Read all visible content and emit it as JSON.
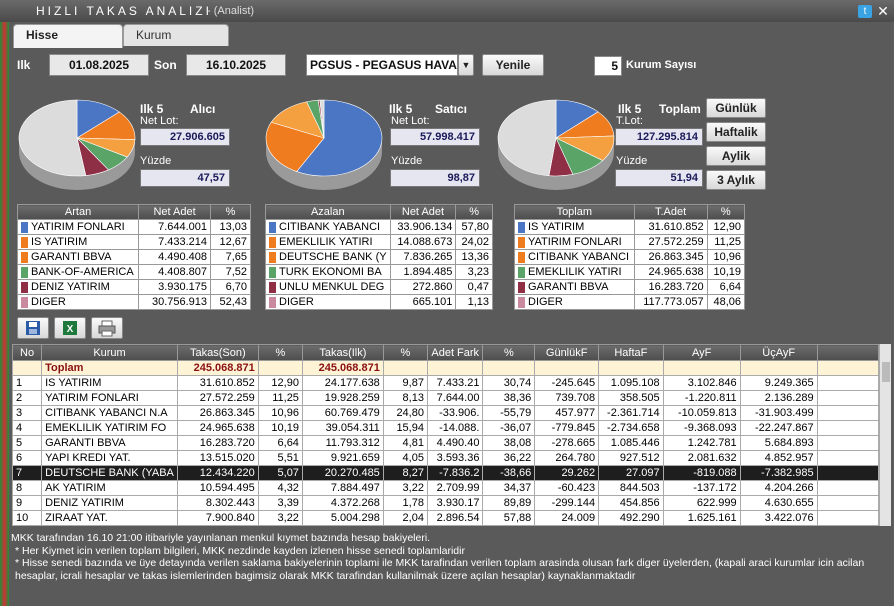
{
  "window": {
    "title": "HIZLI TAKAS ANALIZI",
    "subtitle": "- (Analist)"
  },
  "tabs": [
    {
      "label": "Hisse"
    },
    {
      "label": "Kurum"
    }
  ],
  "controls": {
    "ilk_label": "Ilk",
    "start_date": "01.08.2025",
    "son_label": "Son",
    "end_date": "16.10.2025",
    "stock": "PGSUS - PEGASUS HAVA",
    "yenile": "Yenile",
    "kurum_sayisi_value": "5",
    "kurum_sayisi_label": "Kurum Sayısı"
  },
  "period_buttons": [
    "Günlük",
    "Haftalik",
    "Aylik",
    "3 Aylık"
  ],
  "colors": {
    "blue": "#4a76c4",
    "orange": "#f07c20",
    "green": "#5aa468",
    "maroon": "#8e2f46",
    "pink": "#c98aa0",
    "gray": "#dcdcdc"
  },
  "alici": {
    "ilk": "Ilk 5",
    "title": "Alıcı",
    "net_lot_label": "Net Lot:",
    "net_lot": "27.906.605",
    "yuzde_label": "Yüzde",
    "yuzde": "47,57",
    "headers": [
      "Artan",
      "Net Adet",
      "%"
    ],
    "rows": [
      {
        "name": "YATIRIM FONLARI",
        "v": "7.644.001",
        "p": "13,03",
        "c": "#4a76c4"
      },
      {
        "name": "IS YATIRIM",
        "v": "7.433.214",
        "p": "12,67",
        "c": "#f07c20"
      },
      {
        "name": "GARANTI BBVA",
        "v": "4.490.408",
        "p": "7,65",
        "c": "#f07c20"
      },
      {
        "name": "BANK-OF-AMERICA",
        "v": "4.408.807",
        "p": "7,52",
        "c": "#5aa468"
      },
      {
        "name": "DENIZ YATIRIM",
        "v": "3.930.175",
        "p": "6,70",
        "c": "#8e2f46"
      },
      {
        "name": "DIGER",
        "v": "30.756.913",
        "p": "52,43",
        "c": "#c98aa0"
      }
    ],
    "slices": [
      13.03,
      12.67,
      7.65,
      7.52,
      6.7,
      52.43
    ]
  },
  "satici": {
    "ilk": "Ilk 5",
    "title": "Satıcı",
    "net_lot_label": "Net Lot:",
    "net_lot": "57.998.417",
    "yuzde_label": "Yüzde",
    "yuzde": "98,87",
    "headers": [
      "Azalan",
      "Net Adet",
      "%"
    ],
    "rows": [
      {
        "name": "CITIBANK YABANCI",
        "v": "33.906.134",
        "p": "57,80",
        "c": "#4a76c4"
      },
      {
        "name": "EMEKLILIK YATIRI",
        "v": "14.088.673",
        "p": "24,02",
        "c": "#f07c20"
      },
      {
        "name": "DEUTSCHE BANK (Y",
        "v": "7.836.265",
        "p": "13,36",
        "c": "#f07c20"
      },
      {
        "name": "TURK EKONOMI BA",
        "v": "1.894.485",
        "p": "3,23",
        "c": "#5aa468"
      },
      {
        "name": "UNLU MENKUL DEG",
        "v": "272.860",
        "p": "0,47",
        "c": "#8e2f46"
      },
      {
        "name": "DIGER",
        "v": "665.101",
        "p": "1,13",
        "c": "#c98aa0"
      }
    ],
    "slices": [
      57.8,
      24.02,
      13.36,
      3.23,
      0.47,
      1.13
    ]
  },
  "toplam": {
    "ilk": "Ilk 5",
    "title": "Toplam",
    "lot_label": "T.Lot:",
    "lot": "127.295.814",
    "yuzde_label": "Yüzde",
    "yuzde": "51,94",
    "headers": [
      "Toplam",
      "T.Adet",
      "%"
    ],
    "rows": [
      {
        "name": "IS YATIRIM",
        "v": "31.610.852",
        "p": "12,90",
        "c": "#4a76c4"
      },
      {
        "name": "YATIRIM FONLARI",
        "v": "27.572.259",
        "p": "11,25",
        "c": "#f07c20"
      },
      {
        "name": "CITIBANK YABANCI",
        "v": "26.863.345",
        "p": "10,96",
        "c": "#f07c20"
      },
      {
        "name": "EMEKLILIK YATIRI",
        "v": "24.965.638",
        "p": "10,19",
        "c": "#5aa468"
      },
      {
        "name": "GARANTI BBVA",
        "v": "16.283.720",
        "p": "6,64",
        "c": "#8e2f46"
      },
      {
        "name": "DIGER",
        "v": "117.773.057",
        "p": "48,06",
        "c": "#c98aa0"
      }
    ],
    "slices": [
      12.9,
      11.25,
      10.96,
      10.19,
      6.64,
      48.06
    ]
  },
  "table": {
    "headers": [
      "No",
      "Kurum",
      "Takas(Son)",
      "%",
      "Takas(Ilk)",
      "%",
      "Adet Fark",
      "%",
      "GünlükF",
      "HaftaF",
      "AyF",
      "ÜçAyF"
    ],
    "total": {
      "label": "Toplam",
      "son": "245.068.871",
      "ilk": "245.068.871"
    },
    "rows": [
      [
        "1",
        "IS YATIRIM",
        "31.610.852",
        "12,90",
        "24.177.638",
        "9,87",
        "7.433.21",
        "30,74",
        "-245.645",
        "1.095.108",
        "3.102.846",
        "9.249.365"
      ],
      [
        "2",
        "YATIRIM FONLARI",
        "27.572.259",
        "11,25",
        "19.928.259",
        "8,13",
        "7.644.00",
        "38,36",
        "739.708",
        "358.505",
        "-1.220.811",
        "2.136.289"
      ],
      [
        "3",
        "CITIBANK YABANCI N.A",
        "26.863.345",
        "10,96",
        "60.769.479",
        "24,80",
        "-33.906.",
        "-55,79",
        "457.977",
        "-2.361.714",
        "-10.059.813",
        "-31.903.499"
      ],
      [
        "4",
        "EMEKLILIK YATIRIM FO",
        "24.965.638",
        "10,19",
        "39.054.311",
        "15,94",
        "-14.088.",
        "-36,07",
        "-779.845",
        "-2.734.658",
        "-9.368.093",
        "-22.247.867"
      ],
      [
        "5",
        "GARANTI BBVA",
        "16.283.720",
        "6,64",
        "11.793.312",
        "4,81",
        "4.490.40",
        "38,08",
        "-278.665",
        "1.085.446",
        "1.242.781",
        "5.684.893"
      ],
      [
        "6",
        "YAPI KREDI YAT.",
        "13.515.020",
        "5,51",
        "9.921.659",
        "4,05",
        "3.593.36",
        "36,22",
        "264.780",
        "927.512",
        "2.081.632",
        "4.852.957"
      ],
      [
        "7",
        "DEUTSCHE BANK (YABA",
        "12.434.220",
        "5,07",
        "20.270.485",
        "8,27",
        "-7.836.2",
        "-38,66",
        "29.262",
        "27.097",
        "-819.088",
        "-7.382.985"
      ],
      [
        "8",
        "AK YATIRIM",
        "10.594.495",
        "4,32",
        "7.884.497",
        "3,22",
        "2.709.99",
        "34,37",
        "-60.423",
        "844.503",
        "-137.172",
        "4.204.266"
      ],
      [
        "9",
        "DENIZ YATIRIM",
        "8.302.443",
        "3,39",
        "4.372.268",
        "1,78",
        "3.930.17",
        "89,89",
        "-299.144",
        "454.856",
        "622.999",
        "4.630.655"
      ],
      [
        "10",
        "ZIRAAT YAT.",
        "7.900.840",
        "3,22",
        "5.004.298",
        "2,04",
        "2.896.54",
        "57,88",
        "24.009",
        "492.290",
        "1.625.161",
        "3.422.076"
      ]
    ]
  },
  "footer": [
    "MKK tarafından 16.10 21:00 itibariyle yayınlanan menkul kıymet bazında hesap bakiyeleri.",
    "* Her Kiymet icin verilen toplam bilgileri, MKK nezdinde kayden izlenen hisse senedi toplamlaridir",
    "* Hisse senedi bazında ve üye detayında verilen saklama bakiyelerinin toplami ile MKK tarafindan verilen toplam arasinda olusan fark diger üyelerden, (kapali araci kurumlar icin acilan hesaplar, icrali hesaplar ve takas islemlerinden bagimsiz olarak MKK tarafindan kullanilmak üzere açılan hesaplar) kaynaklanmaktadir"
  ]
}
